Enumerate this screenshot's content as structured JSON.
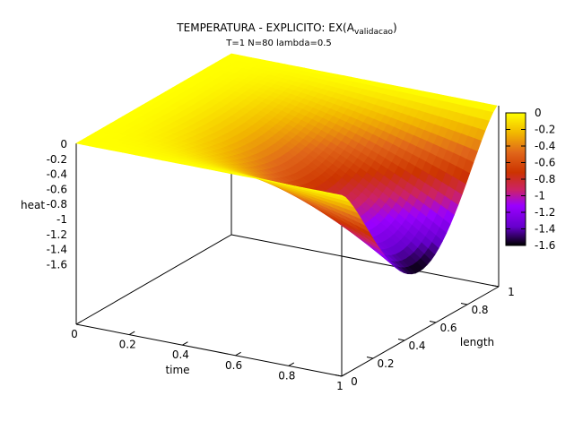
{
  "chart_data": {
    "type": "surface",
    "title_main": "TEMPERATURA - EXPLICITO: EX(A",
    "title_subscript": "validacao",
    "title_close": ")",
    "subtitle": "T=1 N=80 lambda=0.5",
    "xlabel": "time",
    "ylabel": "length",
    "zlabel": "heat",
    "xlim": [
      0,
      1
    ],
    "ylim": [
      0,
      1
    ],
    "zlim": [
      -1.6,
      0
    ],
    "x_ticks": [
      "0",
      "0.2",
      "0.4",
      "0.6",
      "0.8",
      "1"
    ],
    "y_ticks": [
      "0",
      "0.2",
      "0.4",
      "0.6",
      "0.8",
      "1"
    ],
    "z_ticks": [
      "0",
      "-0.2",
      "-0.4",
      "-0.6",
      "-0.8",
      "-1",
      "-1.2",
      "-1.4",
      "-1.6"
    ],
    "colorbar": {
      "range": [
        -1.6,
        0
      ],
      "ticks": [
        "0",
        "-0.2",
        "-0.4",
        "-0.6",
        "-0.8",
        "-1",
        "-1.2",
        "-1.4",
        "-1.6"
      ],
      "palette": [
        "#000000",
        "#6600cc",
        "#9a00ff",
        "#cc2266",
        "#cc3300",
        "#e0661a",
        "#f2b800",
        "#ffff00"
      ]
    },
    "surface_min": {
      "time": 1.0,
      "length": 0.6,
      "heat": -1.6
    },
    "surface_edges": {
      "time_0": 0,
      "length_0": 0,
      "length_1": 0
    }
  }
}
